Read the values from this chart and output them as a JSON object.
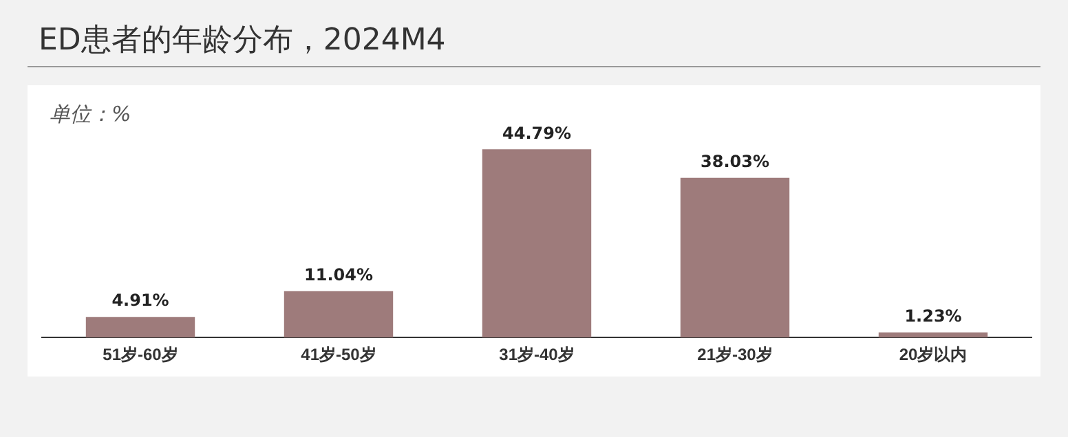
{
  "chart_data": {
    "type": "bar",
    "title": "ED患者的年龄分布，2024M4",
    "categories": [
      "51岁-60岁",
      "41岁-50岁",
      "31岁-40岁",
      "21岁-30岁",
      "20岁以内"
    ],
    "values": [
      4.91,
      11.04,
      44.79,
      38.03,
      1.23
    ],
    "value_labels": [
      "4.91%",
      "11.04%",
      "44.79%",
      "38.03%",
      "1.23%"
    ],
    "color": "#9e7b7b",
    "grid": false,
    "legend": false,
    "annotations": [
      "单位：%"
    ]
  }
}
